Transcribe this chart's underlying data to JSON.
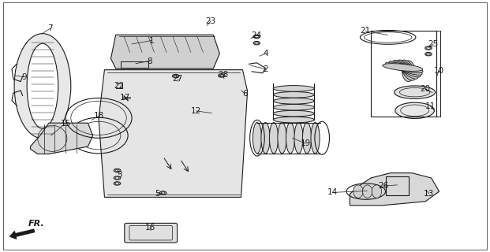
{
  "title": "",
  "bg_color": "#ffffff",
  "fig_width": 6.21,
  "fig_height": 3.2,
  "dpi": 100,
  "line_color": "#1a1a1a",
  "label_fontsize": 7.5,
  "arrow_direction_label": "FR."
}
